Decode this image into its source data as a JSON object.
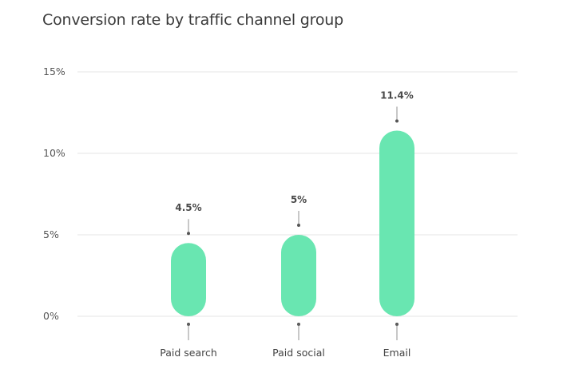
{
  "chart_data": {
    "type": "bar",
    "title": "Conversion rate by traffic channel group",
    "categories": [
      "Paid search",
      "Paid social",
      "Email"
    ],
    "values": [
      4.5,
      5,
      11.4
    ],
    "value_labels": [
      "4.5%",
      "5%",
      "11.4%"
    ],
    "xlabel": "",
    "ylabel": "",
    "ylim": [
      0,
      15
    ],
    "yticks": [
      0,
      5,
      10,
      15
    ],
    "ytick_labels": [
      "0%",
      "5%",
      "10%",
      "15%"
    ],
    "grid": true,
    "legend": "none",
    "bar_color": "#69e6b1"
  }
}
